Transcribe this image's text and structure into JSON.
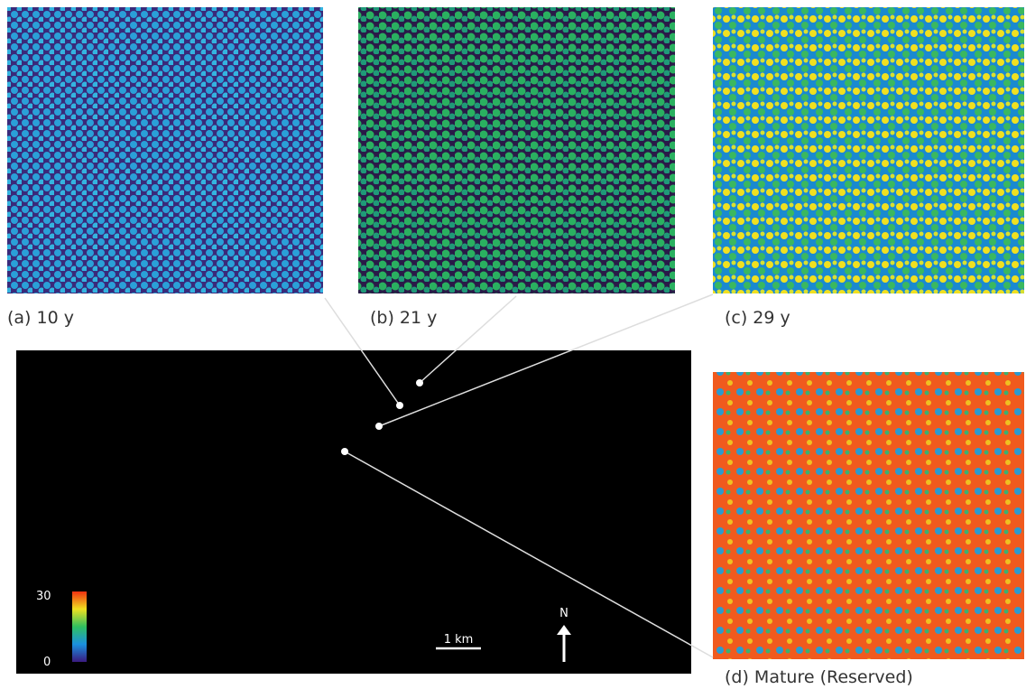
{
  "panels": [
    {
      "label": "(a) 10 y"
    },
    {
      "label": "(b) 21 y"
    },
    {
      "label": "(c) 29 y"
    },
    {
      "label": "(d) Mature (Reserved)"
    }
  ],
  "map": {
    "colorbar": {
      "max_label": "30",
      "min_label": "0"
    },
    "scale_bar": "1 km",
    "north": "N"
  }
}
